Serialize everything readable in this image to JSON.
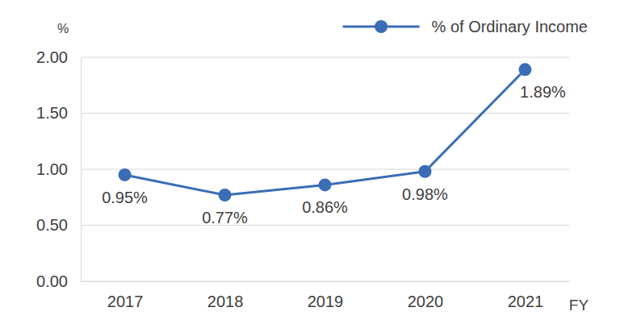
{
  "chart_data": {
    "type": "line",
    "categories": [
      "2017",
      "2018",
      "2019",
      "2020",
      "2021"
    ],
    "series": [
      {
        "name": "% of Ordinary Income",
        "color": "#3a6db5",
        "marker": "circle",
        "values": [
          0.95,
          0.77,
          0.86,
          0.98,
          1.89
        ],
        "value_labels": [
          "0.95%",
          "0.77%",
          "0.86%",
          "0.98%",
          "1.89%"
        ]
      }
    ],
    "y_label": "%",
    "x_label": "FY",
    "ylim": [
      0,
      2
    ],
    "yticks": [
      {
        "value": 0,
        "label": "0.00"
      },
      {
        "value": 0.5,
        "label": "0.50"
      },
      {
        "value": 1,
        "label": "1.00"
      },
      {
        "value": 1.5,
        "label": "1.50"
      },
      {
        "value": 2,
        "label": "2.00"
      }
    ],
    "grid": true,
    "legend": "top-right",
    "data_labels": true
  }
}
